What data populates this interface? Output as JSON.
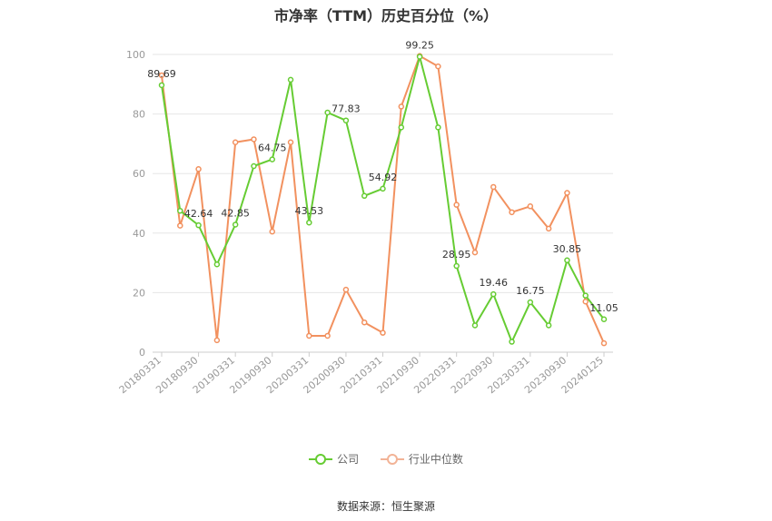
{
  "chart_data": {
    "type": "line",
    "title": "市净率（TTM）历史百分位（%）",
    "ylim": [
      0,
      100
    ],
    "yticks": [
      0,
      20,
      40,
      60,
      80,
      100
    ],
    "x_tick_labels": [
      "20180331",
      "20180930",
      "20190331",
      "20190930",
      "20200331",
      "20200930",
      "20210331",
      "20210930",
      "20220331",
      "20220930",
      "20230331",
      "20230930",
      "20240125"
    ],
    "x": [
      "20180331",
      "20180630",
      "20180930",
      "20181231",
      "20190331",
      "20190630",
      "20190930",
      "20191231",
      "20200331",
      "20200630",
      "20200930",
      "20201231",
      "20210331",
      "20210630",
      "20210930",
      "20211231",
      "20220331",
      "20220630",
      "20220930",
      "20221231",
      "20230331",
      "20230630",
      "20230930",
      "20231231",
      "20240125"
    ],
    "series": [
      {
        "name": "公司",
        "color": "#66cc33",
        "values": [
          89.69,
          47.5,
          42.64,
          29.5,
          42.85,
          62.5,
          64.75,
          91.5,
          43.53,
          80.5,
          77.83,
          52.5,
          54.92,
          75.5,
          99.25,
          75.5,
          28.95,
          9.0,
          19.46,
          3.5,
          16.75,
          9.0,
          30.85,
          19.0,
          11.05
        ]
      },
      {
        "name": "行业中位数",
        "color": "#f2915f",
        "values": [
          93.0,
          42.5,
          61.5,
          4.0,
          70.5,
          71.5,
          40.5,
          70.5,
          5.5,
          5.5,
          21.0,
          10.0,
          6.5,
          82.5,
          99.5,
          96.0,
          49.5,
          33.5,
          55.5,
          47.0,
          49.0,
          41.5,
          53.5,
          17.0,
          3.0
        ]
      }
    ],
    "data_labels": [
      {
        "index": 0,
        "text": "89.69"
      },
      {
        "index": 2,
        "text": "42.64"
      },
      {
        "index": 4,
        "text": "42.85"
      },
      {
        "index": 6,
        "text": "64.75"
      },
      {
        "index": 8,
        "text": "43.53"
      },
      {
        "index": 10,
        "text": "77.83"
      },
      {
        "index": 12,
        "text": "54.92"
      },
      {
        "index": 14,
        "text": "99.25"
      },
      {
        "index": 16,
        "text": "28.95"
      },
      {
        "index": 18,
        "text": "19.46"
      },
      {
        "index": 20,
        "text": "16.75"
      },
      {
        "index": 22,
        "text": "30.85"
      },
      {
        "index": 24,
        "text": "11.05"
      }
    ],
    "grid": true,
    "legend_position": "bottom-center"
  },
  "legend": {
    "company": "公司",
    "industry": "行业中位数"
  },
  "source": "数据来源：恒生聚源"
}
